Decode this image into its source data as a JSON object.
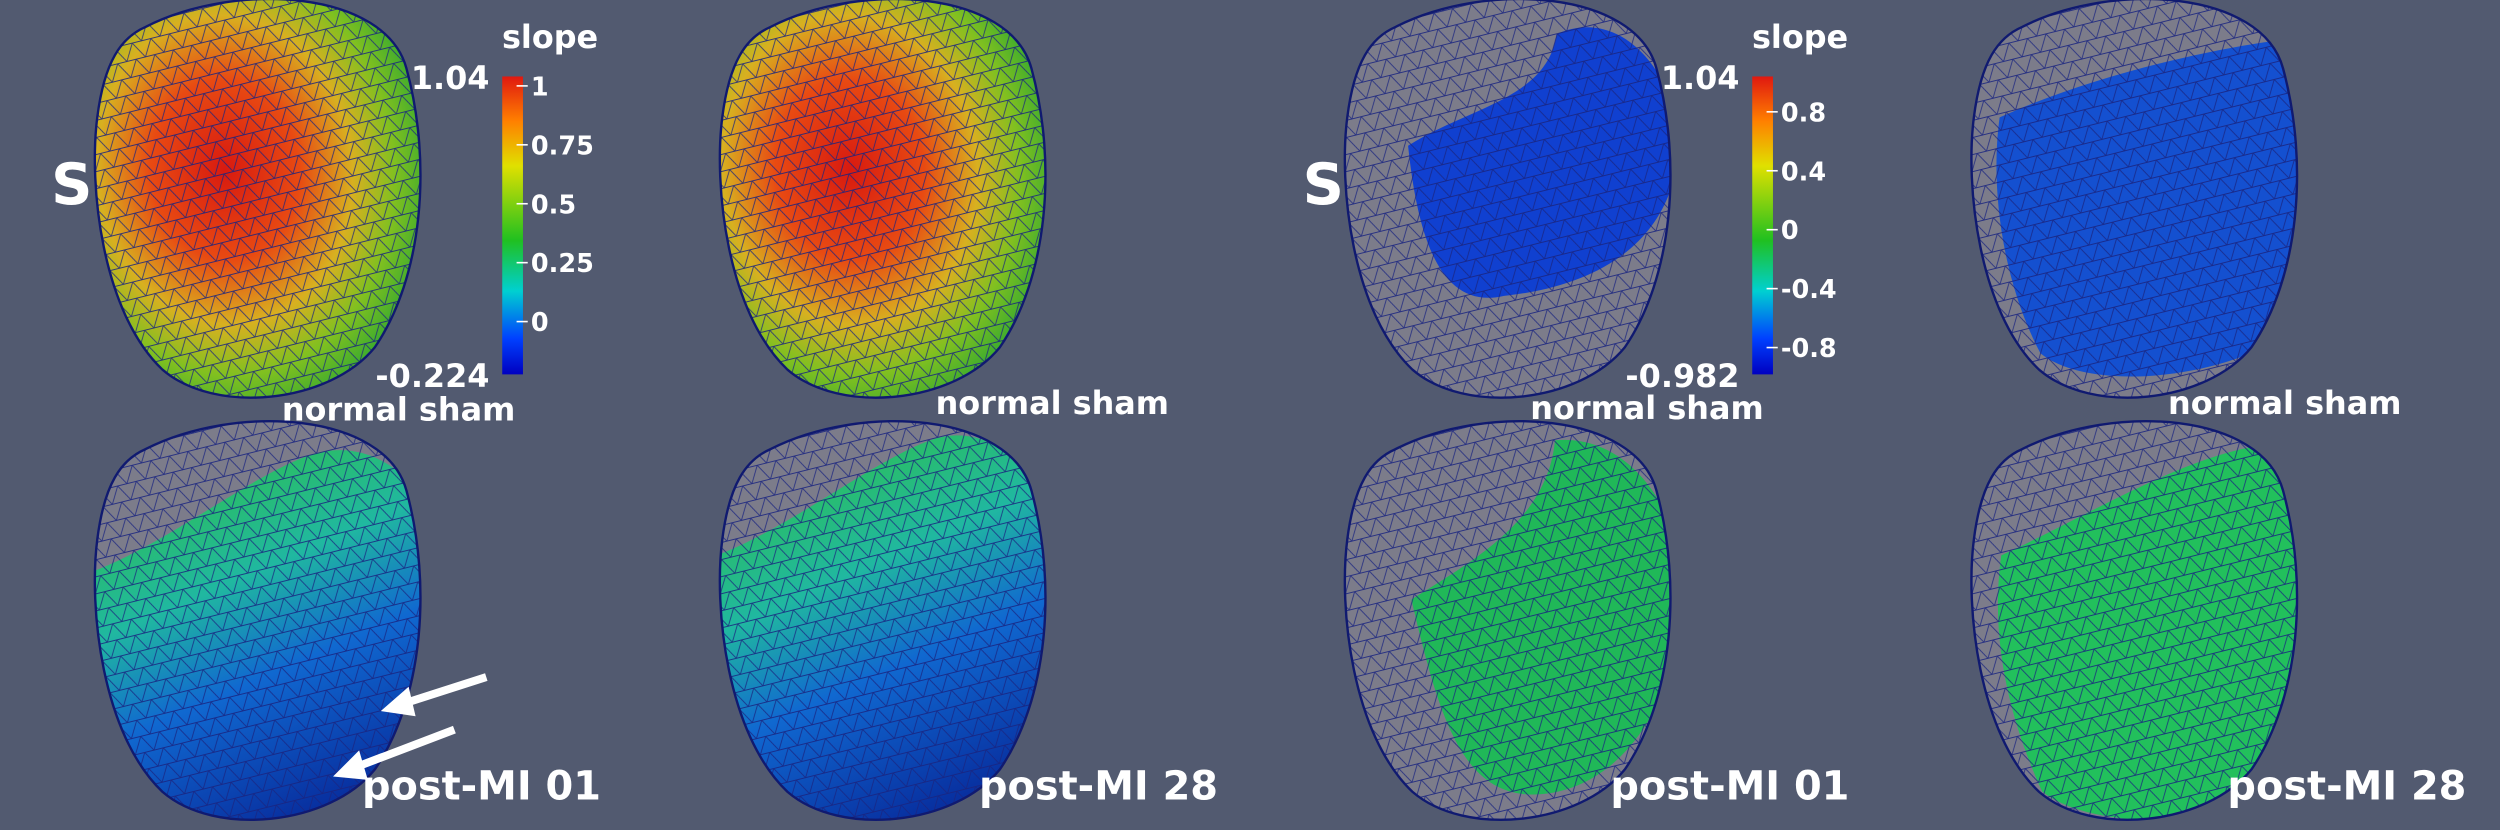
{
  "panels": [
    {
      "label": "S",
      "colorbar": {
        "title": "slope",
        "max": 1.04,
        "min": -0.224,
        "ticks": [
          1,
          0.75,
          0.5,
          0.25,
          0
        ]
      }
    },
    {
      "label": "S",
      "colorbar": {
        "title": "slope",
        "max": 1.04,
        "min": -0.982,
        "ticks": [
          0.8,
          0.4,
          0,
          -0.4,
          -0.8
        ]
      }
    }
  ],
  "captions": {
    "top": [
      "normal sham",
      "normal sham",
      "normal sham",
      "normal sham"
    ],
    "bottom": [
      "post-MI 01",
      "post-MI 28",
      "post-MI 01",
      "post-MI 28"
    ]
  }
}
